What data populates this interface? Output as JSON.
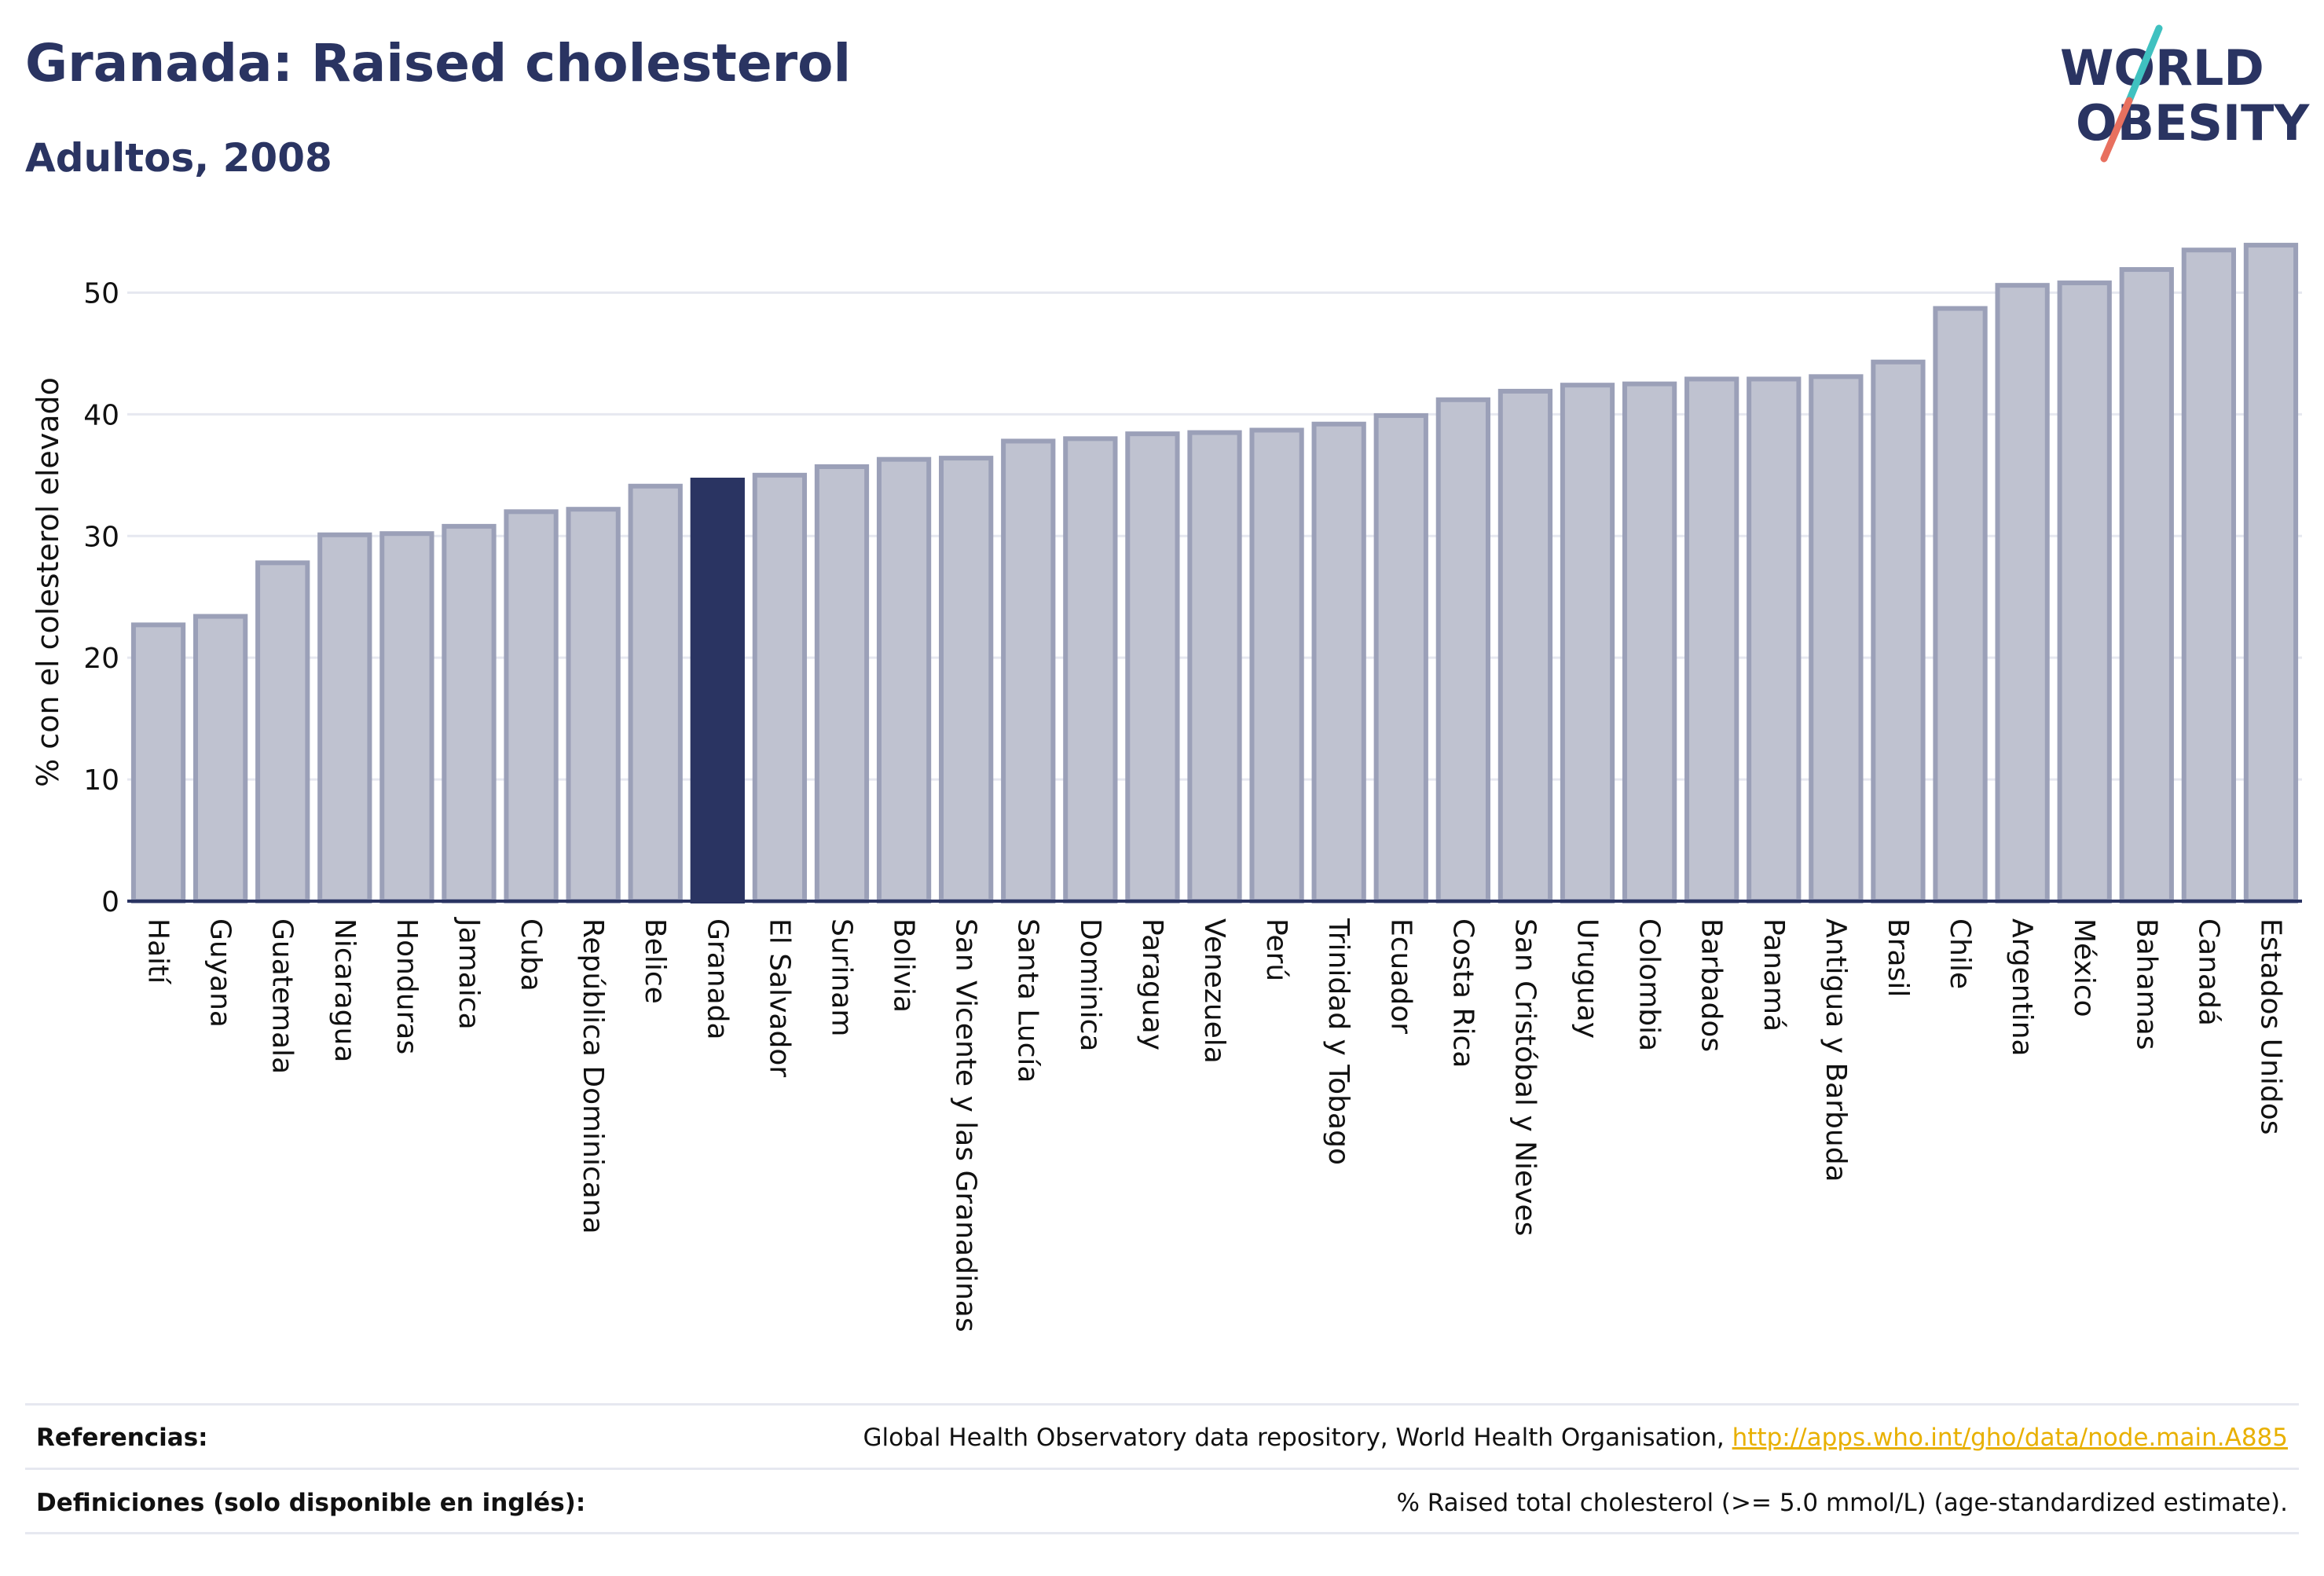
{
  "header": {
    "title": "Granada: Raised cholesterol",
    "subtitle": "Adultos, 2008"
  },
  "logo": {
    "line1": "WORLD",
    "line2": "OBESITY",
    "slash_colors": [
      "#3fc1c0",
      "#e8705f"
    ]
  },
  "footer": {
    "references_label": "Referencias:",
    "references_text": "Global Health Observatory data repository, World Health Organisation, ",
    "references_link": "http://apps.who.int/gho/data/node.main.A885",
    "definitions_label": "Definiciones (solo disponible en inglés):",
    "definitions_text": "% Raised total cholesterol (>= 5.0 mmol/L) (age-standardized estimate)."
  },
  "colors": {
    "bar_default": "#bfc2d0",
    "bar_border": "#9ba0b8",
    "bar_highlight": "#2a3462",
    "gridline": "#e6e8f0",
    "axis": "#2a3462"
  },
  "chart_data": {
    "type": "bar",
    "title": "Granada: Raised cholesterol",
    "subtitle": "Adultos, 2008",
    "xlabel": "",
    "ylabel": "% con el colesterol elevado",
    "ylim": [
      0,
      55
    ],
    "yticks": [
      0,
      10,
      20,
      30,
      40,
      50
    ],
    "grid": true,
    "highlight": "Granada",
    "categories": [
      "Haití",
      "Guyana",
      "Guatemala",
      "Nicaragua",
      "Honduras",
      "Jamaica",
      "Cuba",
      "República Dominicana",
      "Belice",
      "Granada",
      "El Salvador",
      "Surinam",
      "Bolivia",
      "San Vicente y las Granadinas",
      "Santa Lucía",
      "Dominica",
      "Paraguay",
      "Venezuela",
      "Perú",
      "Trinidad y Tobago",
      "Ecuador",
      "Costa Rica",
      "San Cristóbal y Nieves",
      "Uruguay",
      "Colombia",
      "Barbados",
      "Panamá",
      "Antigua y Barbuda",
      "Brasil",
      "Chile",
      "Argentina",
      "México",
      "Bahamas",
      "Canadá",
      "Estados Unidos"
    ],
    "values": [
      22.7,
      23.4,
      27.8,
      30.1,
      30.2,
      30.8,
      32.0,
      32.2,
      34.1,
      34.6,
      35.0,
      35.7,
      36.3,
      36.4,
      37.8,
      38.0,
      38.4,
      38.5,
      38.7,
      39.2,
      39.9,
      41.2,
      41.9,
      42.4,
      42.5,
      42.9,
      42.9,
      43.1,
      44.3,
      48.7,
      50.6,
      50.8,
      51.9,
      53.5,
      53.9
    ]
  }
}
